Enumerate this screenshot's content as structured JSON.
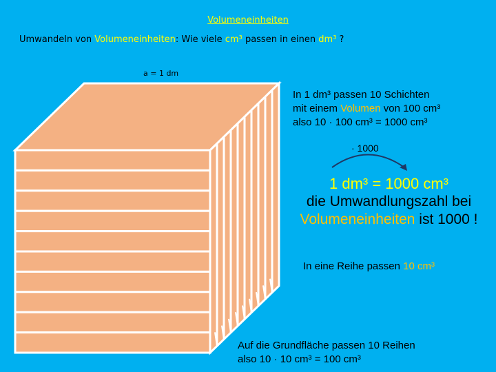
{
  "title": "Volumeneinheiten",
  "subtitle": {
    "prefix": "Umwandeln von ",
    "term": "Volumeneinheiten",
    "middle": ": Wie viele ",
    "unit_small": "cm³",
    "mid2": " passen in einen ",
    "unit_big": "dm³",
    "suffix": " ?"
  },
  "cube_label": "a = 1 dm",
  "layers_text": {
    "line1": "In 1 dm³ passen 10 Schichten",
    "line2_prefix": "mit einem ",
    "line2_term": "Volumen",
    "line2_suffix": " von 100 cm³",
    "line3": "also 10 · 100 cm³  = 1000 cm³"
  },
  "multiplier": "· 1000",
  "equation": "1 dm³ = 1000 cm³",
  "conversion_line1": "die Umwandlungszahl bei",
  "conversion_term": "Volumeneinheiten",
  "conversion_suffix": " ist 1000 !",
  "row_text": {
    "prefix": "In eine Reihe passen ",
    "value": "10 cm³"
  },
  "base_text": {
    "line1": "Auf die Grundfläche passen 10 Reihen",
    "line2": "also 10 · 10 cm³  = 100 cm³"
  },
  "colors": {
    "background": "#00b0f0",
    "highlight": "#ffff00",
    "accent": "#ffc000",
    "cube_face": "#f4b183"
  }
}
